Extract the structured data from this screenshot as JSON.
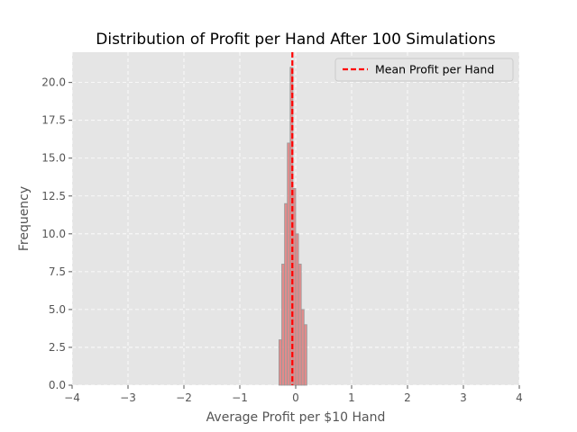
{
  "chart_data": {
    "type": "bar",
    "title": "Distribution of Profit per Hand After 100 Simulations",
    "xlabel": "Average Profit per $10 Hand",
    "ylabel": "Frequency",
    "xlim": [
      -4,
      4
    ],
    "ylim": [
      0,
      22
    ],
    "x_ticks": [
      "−4",
      "−3",
      "−2",
      "−1",
      "0",
      "1",
      "2",
      "3",
      "4"
    ],
    "y_ticks": [
      "0.0",
      "2.5",
      "5.0",
      "7.5",
      "10.0",
      "12.5",
      "15.0",
      "17.5",
      "20.0"
    ],
    "bin_edges": [
      -0.3,
      -0.25,
      -0.2,
      -0.15,
      -0.1,
      -0.05,
      0.0,
      0.05,
      0.1,
      0.15,
      0.2
    ],
    "counts": [
      3,
      8,
      12,
      16,
      21,
      13,
      10,
      8,
      5,
      4
    ],
    "mean_line": {
      "label": "Mean Profit per Hand",
      "x": -0.06,
      "color": "#ff0000"
    },
    "bar_color": "#e07b7b",
    "bar_edge_color": "#999999",
    "plot_background": "#e5e5e5",
    "grid": true,
    "legend_position": "upper right"
  }
}
